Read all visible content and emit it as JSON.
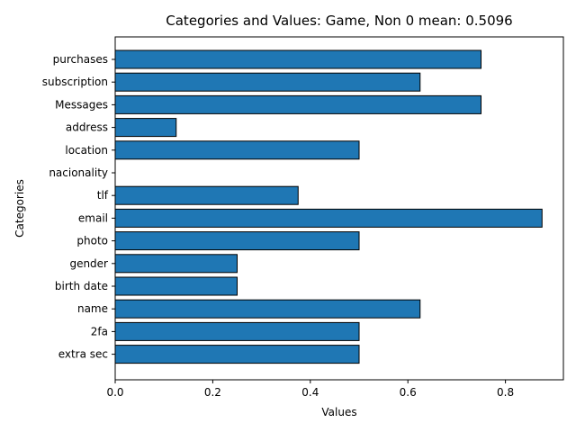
{
  "chart_data": {
    "type": "bar",
    "orientation": "horizontal",
    "title": "Categories and Values: Game, Non 0 mean: 0.5096",
    "xlabel": "Values",
    "ylabel": "Categories",
    "xlim": [
      0,
      0.9188
    ],
    "xticks": [
      "0.0",
      "0.2",
      "0.4",
      "0.6",
      "0.8"
    ],
    "categories": [
      "purchases",
      "subscription",
      "Messages",
      "address",
      "location",
      "nacionality",
      "tlf",
      "email",
      "photo",
      "gender",
      "birth date",
      "name",
      "2fa",
      "extra sec"
    ],
    "values": [
      0.75,
      0.625,
      0.75,
      0.125,
      0.5,
      0,
      0.375,
      0.875,
      0.5,
      0.25,
      0.25,
      0.625,
      0.5,
      0.5
    ],
    "grid": false,
    "legend": "none",
    "bar_color": "#1f77b4",
    "edge_color": "#000000"
  }
}
